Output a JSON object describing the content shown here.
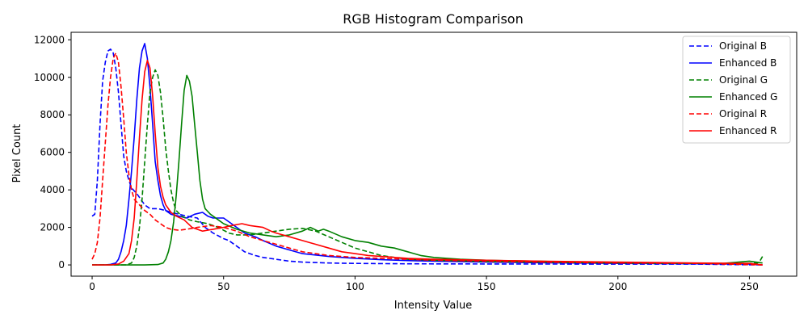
{
  "chart_data": {
    "type": "line",
    "title": "RGB Histogram Comparison",
    "xlabel": "Intensity Value",
    "ylabel": "Pixel Count",
    "xlim": [
      -8,
      268
    ],
    "ylim": [
      -600,
      12400
    ],
    "xticks": [
      0,
      50,
      100,
      150,
      200,
      250
    ],
    "yticks": [
      0,
      2000,
      4000,
      6000,
      8000,
      10000,
      12000
    ],
    "grid": false,
    "legend_position": "top-right",
    "series": [
      {
        "name": "Original B",
        "color": "#0000ff",
        "style": "dashed",
        "points": [
          [
            0,
            2600
          ],
          [
            1,
            2700
          ],
          [
            2,
            4500
          ],
          [
            3,
            7500
          ],
          [
            4,
            9800
          ],
          [
            5,
            10800
          ],
          [
            6,
            11400
          ],
          [
            7,
            11500
          ],
          [
            8,
            11300
          ],
          [
            9,
            10500
          ],
          [
            10,
            9200
          ],
          [
            11,
            7500
          ],
          [
            12,
            5800
          ],
          [
            13,
            5000
          ],
          [
            14,
            4500
          ],
          [
            15,
            4100
          ],
          [
            17,
            3800
          ],
          [
            20,
            3200
          ],
          [
            22,
            3000
          ],
          [
            25,
            3000
          ],
          [
            28,
            2900
          ],
          [
            30,
            2800
          ],
          [
            33,
            2700
          ],
          [
            36,
            2600
          ],
          [
            40,
            2500
          ],
          [
            43,
            2000
          ],
          [
            46,
            1700
          ],
          [
            50,
            1400
          ],
          [
            52,
            1300
          ],
          [
            55,
            1000
          ],
          [
            58,
            700
          ],
          [
            62,
            500
          ],
          [
            65,
            400
          ],
          [
            70,
            300
          ],
          [
            75,
            200
          ],
          [
            80,
            150
          ],
          [
            90,
            100
          ],
          [
            100,
            80
          ],
          [
            120,
            60
          ],
          [
            150,
            50
          ],
          [
            200,
            40
          ],
          [
            230,
            40
          ],
          [
            255,
            0
          ]
        ]
      },
      {
        "name": "Enhanced B",
        "color": "#0000ff",
        "style": "solid",
        "points": [
          [
            0,
            0
          ],
          [
            5,
            0
          ],
          [
            7,
            30
          ],
          [
            9,
            100
          ],
          [
            10,
            300
          ],
          [
            11,
            700
          ],
          [
            12,
            1300
          ],
          [
            13,
            2100
          ],
          [
            14,
            3500
          ],
          [
            15,
            5000
          ],
          [
            16,
            6800
          ],
          [
            17,
            8800
          ],
          [
            18,
            10500
          ],
          [
            19,
            11400
          ],
          [
            20,
            11800
          ],
          [
            21,
            11000
          ],
          [
            22,
            9500
          ],
          [
            23,
            7500
          ],
          [
            24,
            5500
          ],
          [
            25,
            4500
          ],
          [
            26,
            3700
          ],
          [
            27,
            3200
          ],
          [
            28,
            2900
          ],
          [
            30,
            2700
          ],
          [
            33,
            2600
          ],
          [
            36,
            2500
          ],
          [
            39,
            2700
          ],
          [
            42,
            2800
          ],
          [
            44,
            2600
          ],
          [
            46,
            2500
          ],
          [
            50,
            2500
          ],
          [
            52,
            2300
          ],
          [
            55,
            2000
          ],
          [
            58,
            1700
          ],
          [
            62,
            1500
          ],
          [
            65,
            1300
          ],
          [
            70,
            1000
          ],
          [
            75,
            800
          ],
          [
            80,
            600
          ],
          [
            90,
            450
          ],
          [
            100,
            350
          ],
          [
            110,
            280
          ],
          [
            120,
            230
          ],
          [
            130,
            200
          ],
          [
            150,
            150
          ],
          [
            170,
            120
          ],
          [
            200,
            80
          ],
          [
            230,
            60
          ],
          [
            250,
            50
          ],
          [
            255,
            0
          ]
        ]
      },
      {
        "name": "Original G",
        "color": "#008000",
        "style": "dashed",
        "points": [
          [
            0,
            0
          ],
          [
            13,
            0
          ],
          [
            15,
            100
          ],
          [
            16,
            400
          ],
          [
            17,
            1000
          ],
          [
            18,
            2000
          ],
          [
            19,
            3500
          ],
          [
            20,
            5500
          ],
          [
            21,
            7500
          ],
          [
            22,
            9200
          ],
          [
            23,
            10000
          ],
          [
            24,
            10400
          ],
          [
            25,
            10100
          ],
          [
            26,
            9200
          ],
          [
            27,
            7800
          ],
          [
            28,
            6200
          ],
          [
            29,
            5000
          ],
          [
            30,
            4000
          ],
          [
            31,
            3300
          ],
          [
            32,
            2900
          ],
          [
            34,
            2600
          ],
          [
            37,
            2400
          ],
          [
            40,
            2300
          ],
          [
            44,
            2200
          ],
          [
            48,
            2000
          ],
          [
            52,
            1700
          ],
          [
            55,
            1600
          ],
          [
            60,
            1600
          ],
          [
            65,
            1700
          ],
          [
            70,
            1800
          ],
          [
            75,
            1900
          ],
          [
            80,
            1950
          ],
          [
            85,
            1800
          ],
          [
            90,
            1500
          ],
          [
            95,
            1200
          ],
          [
            100,
            900
          ],
          [
            105,
            700
          ],
          [
            110,
            500
          ],
          [
            115,
            400
          ],
          [
            120,
            300
          ],
          [
            130,
            250
          ],
          [
            150,
            180
          ],
          [
            170,
            150
          ],
          [
            200,
            100
          ],
          [
            230,
            80
          ],
          [
            250,
            80
          ],
          [
            253,
            100
          ],
          [
            254,
            200
          ],
          [
            255,
            450
          ]
        ]
      },
      {
        "name": "Enhanced G",
        "color": "#008000",
        "style": "solid",
        "points": [
          [
            0,
            0
          ],
          [
            20,
            0
          ],
          [
            25,
            20
          ],
          [
            27,
            100
          ],
          [
            28,
            300
          ],
          [
            29,
            700
          ],
          [
            30,
            1300
          ],
          [
            31,
            2300
          ],
          [
            32,
            3700
          ],
          [
            33,
            5500
          ],
          [
            34,
            7500
          ],
          [
            35,
            9300
          ],
          [
            36,
            10100
          ],
          [
            37,
            9800
          ],
          [
            38,
            9000
          ],
          [
            39,
            7500
          ],
          [
            40,
            6000
          ],
          [
            41,
            4500
          ],
          [
            42,
            3500
          ],
          [
            43,
            3000
          ],
          [
            45,
            2700
          ],
          [
            48,
            2400
          ],
          [
            50,
            2200
          ],
          [
            55,
            1900
          ],
          [
            60,
            1700
          ],
          [
            65,
            1600
          ],
          [
            70,
            1500
          ],
          [
            75,
            1600
          ],
          [
            80,
            1800
          ],
          [
            83,
            2000
          ],
          [
            86,
            1800
          ],
          [
            88,
            1900
          ],
          [
            90,
            1800
          ],
          [
            95,
            1500
          ],
          [
            100,
            1300
          ],
          [
            105,
            1200
          ],
          [
            110,
            1000
          ],
          [
            115,
            900
          ],
          [
            120,
            700
          ],
          [
            125,
            500
          ],
          [
            130,
            400
          ],
          [
            140,
            300
          ],
          [
            150,
            250
          ],
          [
            160,
            220
          ],
          [
            170,
            200
          ],
          [
            180,
            150
          ],
          [
            200,
            120
          ],
          [
            220,
            100
          ],
          [
            240,
            80
          ],
          [
            250,
            200
          ],
          [
            255,
            100
          ]
        ]
      },
      {
        "name": "Original R",
        "color": "#ff0000",
        "style": "dashed",
        "points": [
          [
            0,
            300
          ],
          [
            1,
            600
          ],
          [
            2,
            1200
          ],
          [
            3,
            2500
          ],
          [
            4,
            4500
          ],
          [
            5,
            6500
          ],
          [
            6,
            8500
          ],
          [
            7,
            10000
          ],
          [
            8,
            11000
          ],
          [
            9,
            11300
          ],
          [
            10,
            10800
          ],
          [
            11,
            9500
          ],
          [
            12,
            7800
          ],
          [
            13,
            6000
          ],
          [
            14,
            4800
          ],
          [
            15,
            4000
          ],
          [
            16,
            3500
          ],
          [
            18,
            3200
          ],
          [
            20,
            2900
          ],
          [
            22,
            2700
          ],
          [
            24,
            2400
          ],
          [
            26,
            2200
          ],
          [
            28,
            2000
          ],
          [
            30,
            1900
          ],
          [
            33,
            1850
          ],
          [
            36,
            1900
          ],
          [
            40,
            2000
          ],
          [
            45,
            2100
          ],
          [
            50,
            2000
          ],
          [
            55,
            1800
          ],
          [
            60,
            1500
          ],
          [
            65,
            1300
          ],
          [
            70,
            1100
          ],
          [
            75,
            900
          ],
          [
            80,
            700
          ],
          [
            90,
            500
          ],
          [
            100,
            400
          ],
          [
            110,
            350
          ],
          [
            120,
            300
          ],
          [
            130,
            250
          ],
          [
            150,
            200
          ],
          [
            170,
            150
          ],
          [
            200,
            100
          ],
          [
            230,
            80
          ],
          [
            255,
            0
          ]
        ]
      },
      {
        "name": "Enhanced R",
        "color": "#ff0000",
        "style": "solid",
        "points": [
          [
            0,
            0
          ],
          [
            7,
            0
          ],
          [
            10,
            50
          ],
          [
            12,
            200
          ],
          [
            14,
            600
          ],
          [
            15,
            1300
          ],
          [
            16,
            2500
          ],
          [
            17,
            4500
          ],
          [
            18,
            6800
          ],
          [
            19,
            8800
          ],
          [
            20,
            10300
          ],
          [
            21,
            10900
          ],
          [
            22,
            10500
          ],
          [
            23,
            9000
          ],
          [
            24,
            7000
          ],
          [
            25,
            5200
          ],
          [
            26,
            4200
          ],
          [
            27,
            3600
          ],
          [
            28,
            3200
          ],
          [
            30,
            2800
          ],
          [
            32,
            2600
          ],
          [
            35,
            2400
          ],
          [
            38,
            2000
          ],
          [
            42,
            1800
          ],
          [
            46,
            1900
          ],
          [
            50,
            2000
          ],
          [
            53,
            2100
          ],
          [
            57,
            2200
          ],
          [
            60,
            2100
          ],
          [
            65,
            2000
          ],
          [
            68,
            1800
          ],
          [
            70,
            1700
          ],
          [
            75,
            1500
          ],
          [
            80,
            1300
          ],
          [
            85,
            1100
          ],
          [
            90,
            900
          ],
          [
            95,
            700
          ],
          [
            100,
            600
          ],
          [
            105,
            500
          ],
          [
            110,
            450
          ],
          [
            120,
            350
          ],
          [
            130,
            300
          ],
          [
            150,
            250
          ],
          [
            170,
            200
          ],
          [
            200,
            150
          ],
          [
            230,
            100
          ],
          [
            250,
            80
          ],
          [
            255,
            0
          ]
        ]
      }
    ]
  }
}
